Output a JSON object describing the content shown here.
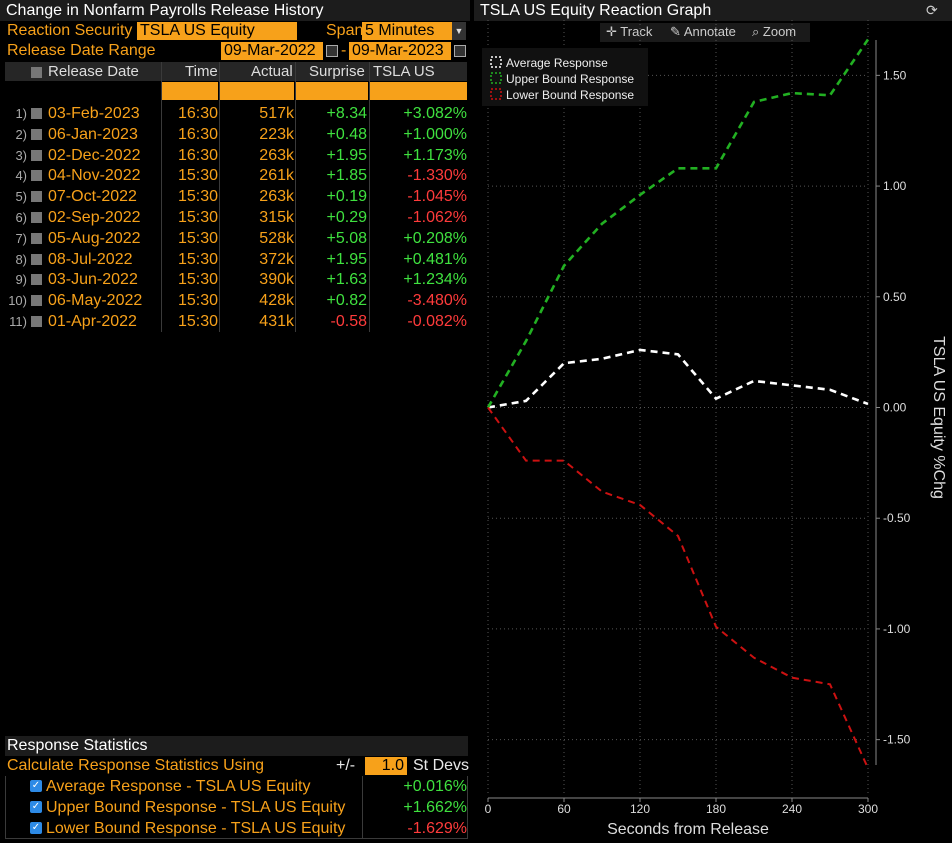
{
  "left": {
    "title": "Change in Nonfarm Payrolls Release History",
    "reaction_label": "Reaction Security",
    "reaction_value": "TSLA US Equity",
    "span_label": "Span",
    "span_value": "5 Minutes",
    "range_label": "Release Date Range",
    "range_from": "09-Mar-2022",
    "range_sep": "-",
    "range_to": "09-Mar-2023",
    "columns": [
      "Release Date",
      "Time",
      "Actual",
      "Surprise",
      "TSLA US %Chg"
    ],
    "rows": [
      {
        "n": "1)",
        "date": "03-Feb-2023",
        "time": "16:30",
        "actual": "517k",
        "surprise": "+8.34",
        "chg": "+3.082%"
      },
      {
        "n": "2)",
        "date": "06-Jan-2023",
        "time": "16:30",
        "actual": "223k",
        "surprise": "+0.48",
        "chg": "+1.000%"
      },
      {
        "n": "3)",
        "date": "02-Dec-2022",
        "time": "16:30",
        "actual": "263k",
        "surprise": "+1.95",
        "chg": "+1.173%"
      },
      {
        "n": "4)",
        "date": "04-Nov-2022",
        "time": "15:30",
        "actual": "261k",
        "surprise": "+1.85",
        "chg": "-1.330%"
      },
      {
        "n": "5)",
        "date": "07-Oct-2022",
        "time": "15:30",
        "actual": "263k",
        "surprise": "+0.19",
        "chg": "-1.045%"
      },
      {
        "n": "6)",
        "date": "02-Sep-2022",
        "time": "15:30",
        "actual": "315k",
        "surprise": "+0.29",
        "chg": "-1.062%"
      },
      {
        "n": "7)",
        "date": "05-Aug-2022",
        "time": "15:30",
        "actual": "528k",
        "surprise": "+5.08",
        "chg": "+0.208%"
      },
      {
        "n": "8)",
        "date": "08-Jul-2022",
        "time": "15:30",
        "actual": "372k",
        "surprise": "+1.95",
        "chg": "+0.481%"
      },
      {
        "n": "9)",
        "date": "03-Jun-2022",
        "time": "15:30",
        "actual": "390k",
        "surprise": "+1.63",
        "chg": "+1.234%"
      },
      {
        "n": "10)",
        "date": "06-May-2022",
        "time": "15:30",
        "actual": "428k",
        "surprise": "+0.82",
        "chg": "-3.480%"
      },
      {
        "n": "11)",
        "date": "01-Apr-2022",
        "time": "15:30",
        "actual": "431k",
        "surprise": "-0.58",
        "chg": "-0.082%"
      }
    ],
    "stats": {
      "title": "Response Statistics",
      "calc_label": "Calculate Response Statistics Using",
      "pm": "+/-",
      "stdev_value": "1.0",
      "stdev_label": "St Devs",
      "items": [
        {
          "label": "Average Response - TSLA US Equity",
          "value": "+0.016%"
        },
        {
          "label": "Upper Bound Response - TSLA US Equity",
          "value": "+1.662%"
        },
        {
          "label": "Lower Bound Response - TSLA US Equity",
          "value": "-1.629%"
        }
      ]
    }
  },
  "right": {
    "title": "TSLA US Equity Reaction Graph",
    "tools": [
      "Track",
      "Annotate",
      "Zoom"
    ]
  },
  "colors": {
    "accent": "#f7a11a",
    "positive": "#3fe13f",
    "negative": "#ff3b3b",
    "avg": "#ffffff",
    "upper": "#22b022",
    "lower": "#cc1111"
  },
  "chart_data": {
    "type": "line",
    "xlabel": "Seconds from Release",
    "ylabel": "TSLA US Equity %Chg",
    "xlim": [
      0,
      300
    ],
    "ylim": [
      -1.75,
      1.75
    ],
    "xticks": [
      0,
      60,
      120,
      180,
      240,
      300
    ],
    "yticks": [
      1.5,
      1.0,
      0.5,
      0.0,
      -0.5,
      -1.0,
      -1.5
    ],
    "ytick_labels": [
      "1.50",
      "1.00",
      "0.50",
      "0.00",
      "-0.50",
      "-1.00",
      "-1.50"
    ],
    "grid": true,
    "legend_position": "top-left",
    "x": [
      0,
      30,
      60,
      90,
      120,
      150,
      180,
      210,
      240,
      270,
      300
    ],
    "series": [
      {
        "name": "Average Response",
        "color": "#ffffff",
        "values": [
          0.0,
          0.03,
          0.2,
          0.22,
          0.26,
          0.24,
          0.04,
          0.12,
          0.1,
          0.08,
          0.016
        ]
      },
      {
        "name": "Upper Bound Response",
        "color": "#22b022",
        "values": [
          0.0,
          0.3,
          0.64,
          0.83,
          0.96,
          1.08,
          1.08,
          1.38,
          1.42,
          1.41,
          1.662
        ]
      },
      {
        "name": "Lower Bound Response",
        "color": "#cc1111",
        "values": [
          0.0,
          -0.24,
          -0.24,
          -0.38,
          -0.44,
          -0.58,
          -0.99,
          -1.13,
          -1.22,
          -1.25,
          -1.629
        ]
      }
    ]
  }
}
